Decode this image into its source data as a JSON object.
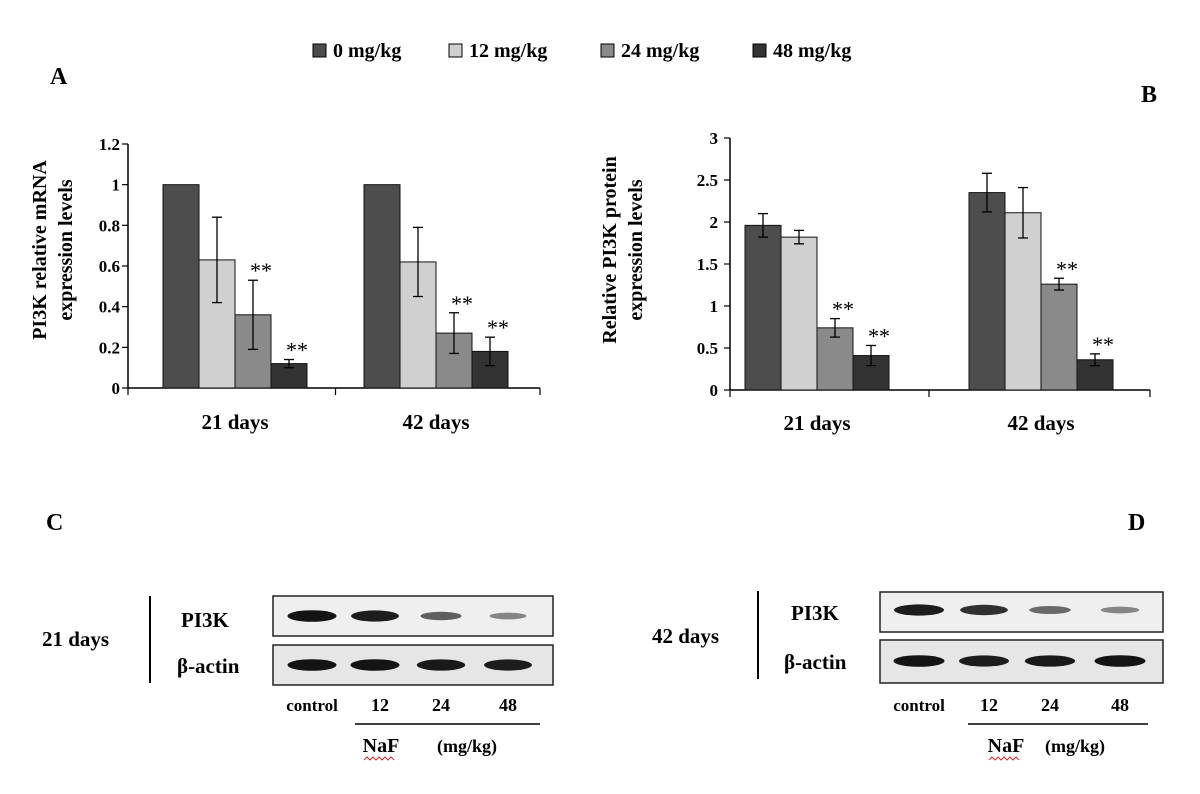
{
  "legend": {
    "items": [
      {
        "label": "0 mg/kg",
        "color": "#4d4d4d"
      },
      {
        "label": "12 mg/kg",
        "color": "#d0d0d0"
      },
      {
        "label": "24 mg/kg",
        "color": "#8a8a8a"
      },
      {
        "label": "48 mg/kg",
        "color": "#333333"
      }
    ]
  },
  "panel_labels": {
    "a": "A",
    "b": "B",
    "c": "C",
    "d": "D"
  },
  "significance_mark": "**",
  "chart_data": [
    {
      "panel": "A",
      "type": "bar",
      "categories": [
        "21 days",
        "42 days"
      ],
      "ylabel_lines": [
        "PI3K relative mRNA",
        "expression levels"
      ],
      "xlabel": "",
      "ylim": [
        0,
        1.2
      ],
      "yticks": [
        0,
        0.2,
        0.4,
        0.6,
        0.8,
        1,
        1.2
      ],
      "ytick_labels": [
        "0",
        "0.2",
        "0.4",
        "0.6",
        "0.8",
        "1",
        "1.2"
      ],
      "grid": false,
      "legend_position": "top-center",
      "series": [
        {
          "name": "0 mg/kg",
          "values": [
            1.0,
            1.0
          ],
          "errors": [
            0,
            0
          ],
          "sig": [
            false,
            false
          ]
        },
        {
          "name": "12 mg/kg",
          "values": [
            0.63,
            0.62
          ],
          "errors": [
            0.21,
            0.17
          ],
          "sig": [
            false,
            false
          ]
        },
        {
          "name": "24 mg/kg",
          "values": [
            0.36,
            0.27
          ],
          "errors": [
            0.17,
            0.1
          ],
          "sig": [
            true,
            true
          ]
        },
        {
          "name": "48 mg/kg",
          "values": [
            0.12,
            0.18
          ],
          "errors": [
            0.02,
            0.07
          ],
          "sig": [
            true,
            true
          ]
        }
      ]
    },
    {
      "panel": "B",
      "type": "bar",
      "categories": [
        "21 days",
        "42 days"
      ],
      "ylabel_lines": [
        "Relative PI3K protein",
        "expression levels"
      ],
      "xlabel": "",
      "ylim": [
        0,
        3
      ],
      "yticks": [
        0,
        0.5,
        1,
        1.5,
        2,
        2.5,
        3
      ],
      "ytick_labels": [
        "0",
        "0.5",
        "1",
        "1.5",
        "2",
        "2.5",
        "3"
      ],
      "grid": false,
      "legend_position": "top-center",
      "series": [
        {
          "name": "0 mg/kg",
          "values": [
            1.96,
            2.35
          ],
          "errors": [
            0.14,
            0.23
          ],
          "sig": [
            false,
            false
          ]
        },
        {
          "name": "12 mg/kg",
          "values": [
            1.82,
            2.11
          ],
          "errors": [
            0.08,
            0.3
          ],
          "sig": [
            false,
            false
          ]
        },
        {
          "name": "24 mg/kg",
          "values": [
            0.74,
            1.26
          ],
          "errors": [
            0.11,
            0.07
          ],
          "sig": [
            true,
            true
          ]
        },
        {
          "name": "48 mg/kg",
          "values": [
            0.41,
            0.36
          ],
          "errors": [
            0.12,
            0.07
          ],
          "sig": [
            true,
            true
          ]
        }
      ]
    }
  ],
  "blots": [
    {
      "panel": "C",
      "time_label": "21 days",
      "rows": [
        {
          "label": "PI3K",
          "band_intensity": [
            0.95,
            0.9,
            0.55,
            0.35
          ]
        },
        {
          "label": "β-actin",
          "band_intensity": [
            0.95,
            0.95,
            0.92,
            0.9
          ]
        }
      ],
      "lanes": [
        "control",
        "12",
        "24",
        "48"
      ],
      "treatment": "NaF",
      "unit": "(mg/kg)"
    },
    {
      "panel": "D",
      "time_label": "42 days",
      "rows": [
        {
          "label": "PI3K",
          "band_intensity": [
            0.9,
            0.8,
            0.5,
            0.35
          ]
        },
        {
          "label": "β-actin",
          "band_intensity": [
            0.95,
            0.9,
            0.92,
            0.95
          ]
        }
      ],
      "lanes": [
        "control",
        "12",
        "24",
        "48"
      ],
      "treatment": "NaF",
      "unit": "(mg/kg)"
    }
  ]
}
